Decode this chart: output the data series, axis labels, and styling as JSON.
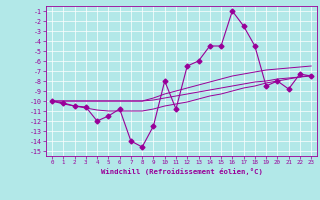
{
  "x": [
    0,
    1,
    2,
    3,
    4,
    5,
    6,
    7,
    8,
    9,
    10,
    11,
    12,
    13,
    14,
    15,
    16,
    17,
    18,
    19,
    20,
    21,
    22,
    23
  ],
  "y_main": [
    -10,
    -10.2,
    -10.5,
    -10.6,
    -12,
    -11.5,
    -10.8,
    -14,
    -14.6,
    -12.5,
    -8,
    -10.8,
    -6.5,
    -6,
    -4.5,
    -4.5,
    -1,
    -2.5,
    -4.5,
    -8.5,
    -8,
    -8.8,
    -7.3,
    -7.5
  ],
  "y_band1": [
    -10,
    -10,
    -10,
    -10,
    -10,
    -10,
    -10,
    -10,
    -10,
    -9.9,
    -9.7,
    -9.5,
    -9.3,
    -9.1,
    -8.9,
    -8.7,
    -8.5,
    -8.3,
    -8.1,
    -8.0,
    -7.8,
    -7.7,
    -7.6,
    -7.5
  ],
  "y_band2": [
    -10,
    -10,
    -10,
    -10,
    -10,
    -10,
    -10,
    -10,
    -10,
    -9.7,
    -9.3,
    -9.0,
    -8.7,
    -8.4,
    -8.1,
    -7.8,
    -7.5,
    -7.3,
    -7.1,
    -6.9,
    -6.8,
    -6.7,
    -6.6,
    -6.5
  ],
  "y_band3": [
    -10,
    -10.3,
    -10.5,
    -10.7,
    -10.9,
    -11,
    -11,
    -11,
    -11,
    -10.8,
    -10.5,
    -10.3,
    -10.1,
    -9.8,
    -9.5,
    -9.3,
    -9.0,
    -8.7,
    -8.5,
    -8.2,
    -8.0,
    -7.8,
    -7.6,
    -7.4
  ],
  "xlabel": "Windchill (Refroidissement éolien,°C)",
  "ylim": [
    -15.5,
    -0.5
  ],
  "xlim": [
    -0.5,
    23.5
  ],
  "yticks": [
    -15,
    -14,
    -13,
    -12,
    -11,
    -10,
    -9,
    -8,
    -7,
    -6,
    -5,
    -4,
    -3,
    -2,
    -1
  ],
  "xticks": [
    0,
    1,
    2,
    3,
    4,
    5,
    6,
    7,
    8,
    9,
    10,
    11,
    12,
    13,
    14,
    15,
    16,
    17,
    18,
    19,
    20,
    21,
    22,
    23
  ],
  "line_color": "#990099",
  "bg_color": "#b2e8e8",
  "grid_color": "#ffffff",
  "marker": "D",
  "marker_size": 2.5
}
